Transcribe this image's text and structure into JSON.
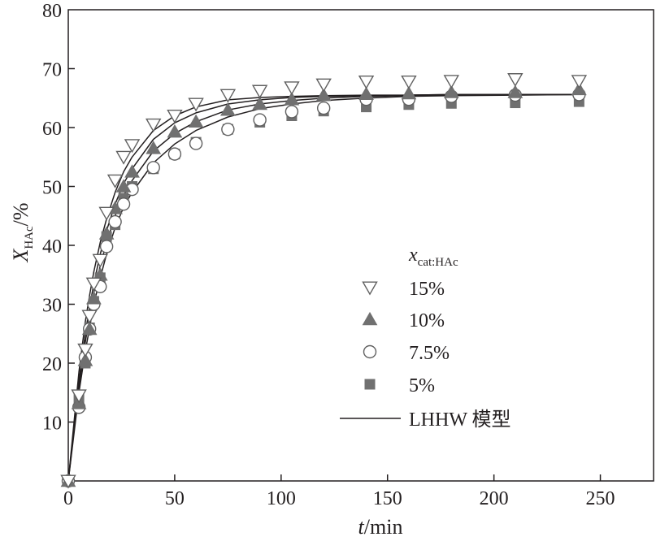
{
  "chart_data": {
    "type": "scatter",
    "xlabel": {
      "var": "t",
      "unit": "/min"
    },
    "ylabel": {
      "var": "X",
      "sub": "HAc",
      "unit": "/%"
    },
    "xlim": [
      0,
      275
    ],
    "ylim": [
      0,
      80
    ],
    "xticks": [
      0,
      50,
      100,
      150,
      200,
      250
    ],
    "yticks": [
      10,
      20,
      30,
      40,
      50,
      60,
      70,
      80
    ],
    "xtick_labels": [
      "0",
      "50",
      "100",
      "150",
      "200",
      "250"
    ],
    "ytick_labels": [
      "10",
      "20",
      "30",
      "40",
      "50",
      "60",
      "70",
      "80"
    ],
    "grid": false,
    "legend": {
      "position": "lower-right",
      "title": {
        "var": "x",
        "sub": "cat:HAc"
      },
      "model_label": "LHHW 模型"
    },
    "x": [
      0,
      5,
      8,
      10,
      12,
      15,
      18,
      22,
      26,
      30,
      40,
      50,
      60,
      75,
      90,
      105,
      120,
      140,
      160,
      180,
      210,
      240
    ],
    "series": [
      {
        "name": "15%",
        "marker": "triangle-down-open",
        "values": [
          0,
          14.5,
          22.3,
          28,
          33.5,
          37.5,
          45.5,
          51,
          55,
          57,
          60.5,
          62,
          64,
          65.5,
          66.2,
          66.8,
          67.3,
          67.8,
          67.8,
          67.9,
          68.2,
          67.9
        ]
      },
      {
        "name": "10%",
        "marker": "triangle-up-filled",
        "values": [
          0,
          13.2,
          20.5,
          25.8,
          31,
          35,
          42,
          46.3,
          50,
          52.5,
          56.5,
          59.3,
          61,
          63,
          64,
          64.8,
          65.5,
          65.7,
          65.8,
          66,
          66,
          66.5
        ]
      },
      {
        "name": "7.5%",
        "marker": "circle-open",
        "values": [
          0,
          12.5,
          21,
          25.8,
          30,
          33,
          39.8,
          44,
          47,
          49.5,
          53.2,
          55.5,
          57.3,
          59.7,
          61.3,
          62.7,
          63.3,
          64.8,
          64.8,
          65.3,
          65.5,
          65.6
        ]
      },
      {
        "name": "5%",
        "marker": "square-filled",
        "values": [
          0,
          14,
          20,
          26,
          30.5,
          34.5,
          41.5,
          43.5,
          48,
          50,
          53,
          55.5,
          57.5,
          59.7,
          60.9,
          62,
          62.8,
          63.5,
          63.9,
          64.1,
          64.2,
          64.4
        ]
      }
    ],
    "model": {
      "name": "LHHW 模型",
      "curves": [
        {
          "for": "15%",
          "values": [
            0,
            18.5,
            27,
            31.5,
            35.5,
            40.5,
            44.5,
            49,
            52.5,
            55,
            59.5,
            62,
            63.5,
            64.7,
            65.1,
            65.3,
            65.4,
            65.5,
            65.5,
            65.6,
            65.6,
            65.6
          ]
        },
        {
          "for": "10%",
          "values": [
            0,
            17,
            25,
            29.5,
            33.5,
            38.5,
            42.5,
            47,
            50.5,
            53,
            58,
            60.8,
            62.5,
            64,
            64.7,
            65.1,
            65.3,
            65.4,
            65.5,
            65.6,
            65.6,
            65.6
          ]
        },
        {
          "for": "7.5%",
          "values": [
            0,
            16,
            23.5,
            28,
            32,
            36.5,
            40.5,
            45,
            48.5,
            51,
            56,
            59,
            61,
            63,
            64,
            64.6,
            65,
            65.3,
            65.4,
            65.5,
            65.6,
            65.6
          ]
        },
        {
          "for": "5%",
          "values": [
            0,
            15,
            22,
            26,
            30,
            34.5,
            38.5,
            43,
            46.5,
            49,
            54,
            57.2,
            59.5,
            61.8,
            63.2,
            64,
            64.6,
            65,
            65.3,
            65.4,
            65.5,
            65.6
          ]
        }
      ]
    },
    "colors": {
      "axis": "#231f20",
      "marker_fill": "#707070",
      "marker_stroke": "#606060",
      "line": "#231f20"
    }
  }
}
